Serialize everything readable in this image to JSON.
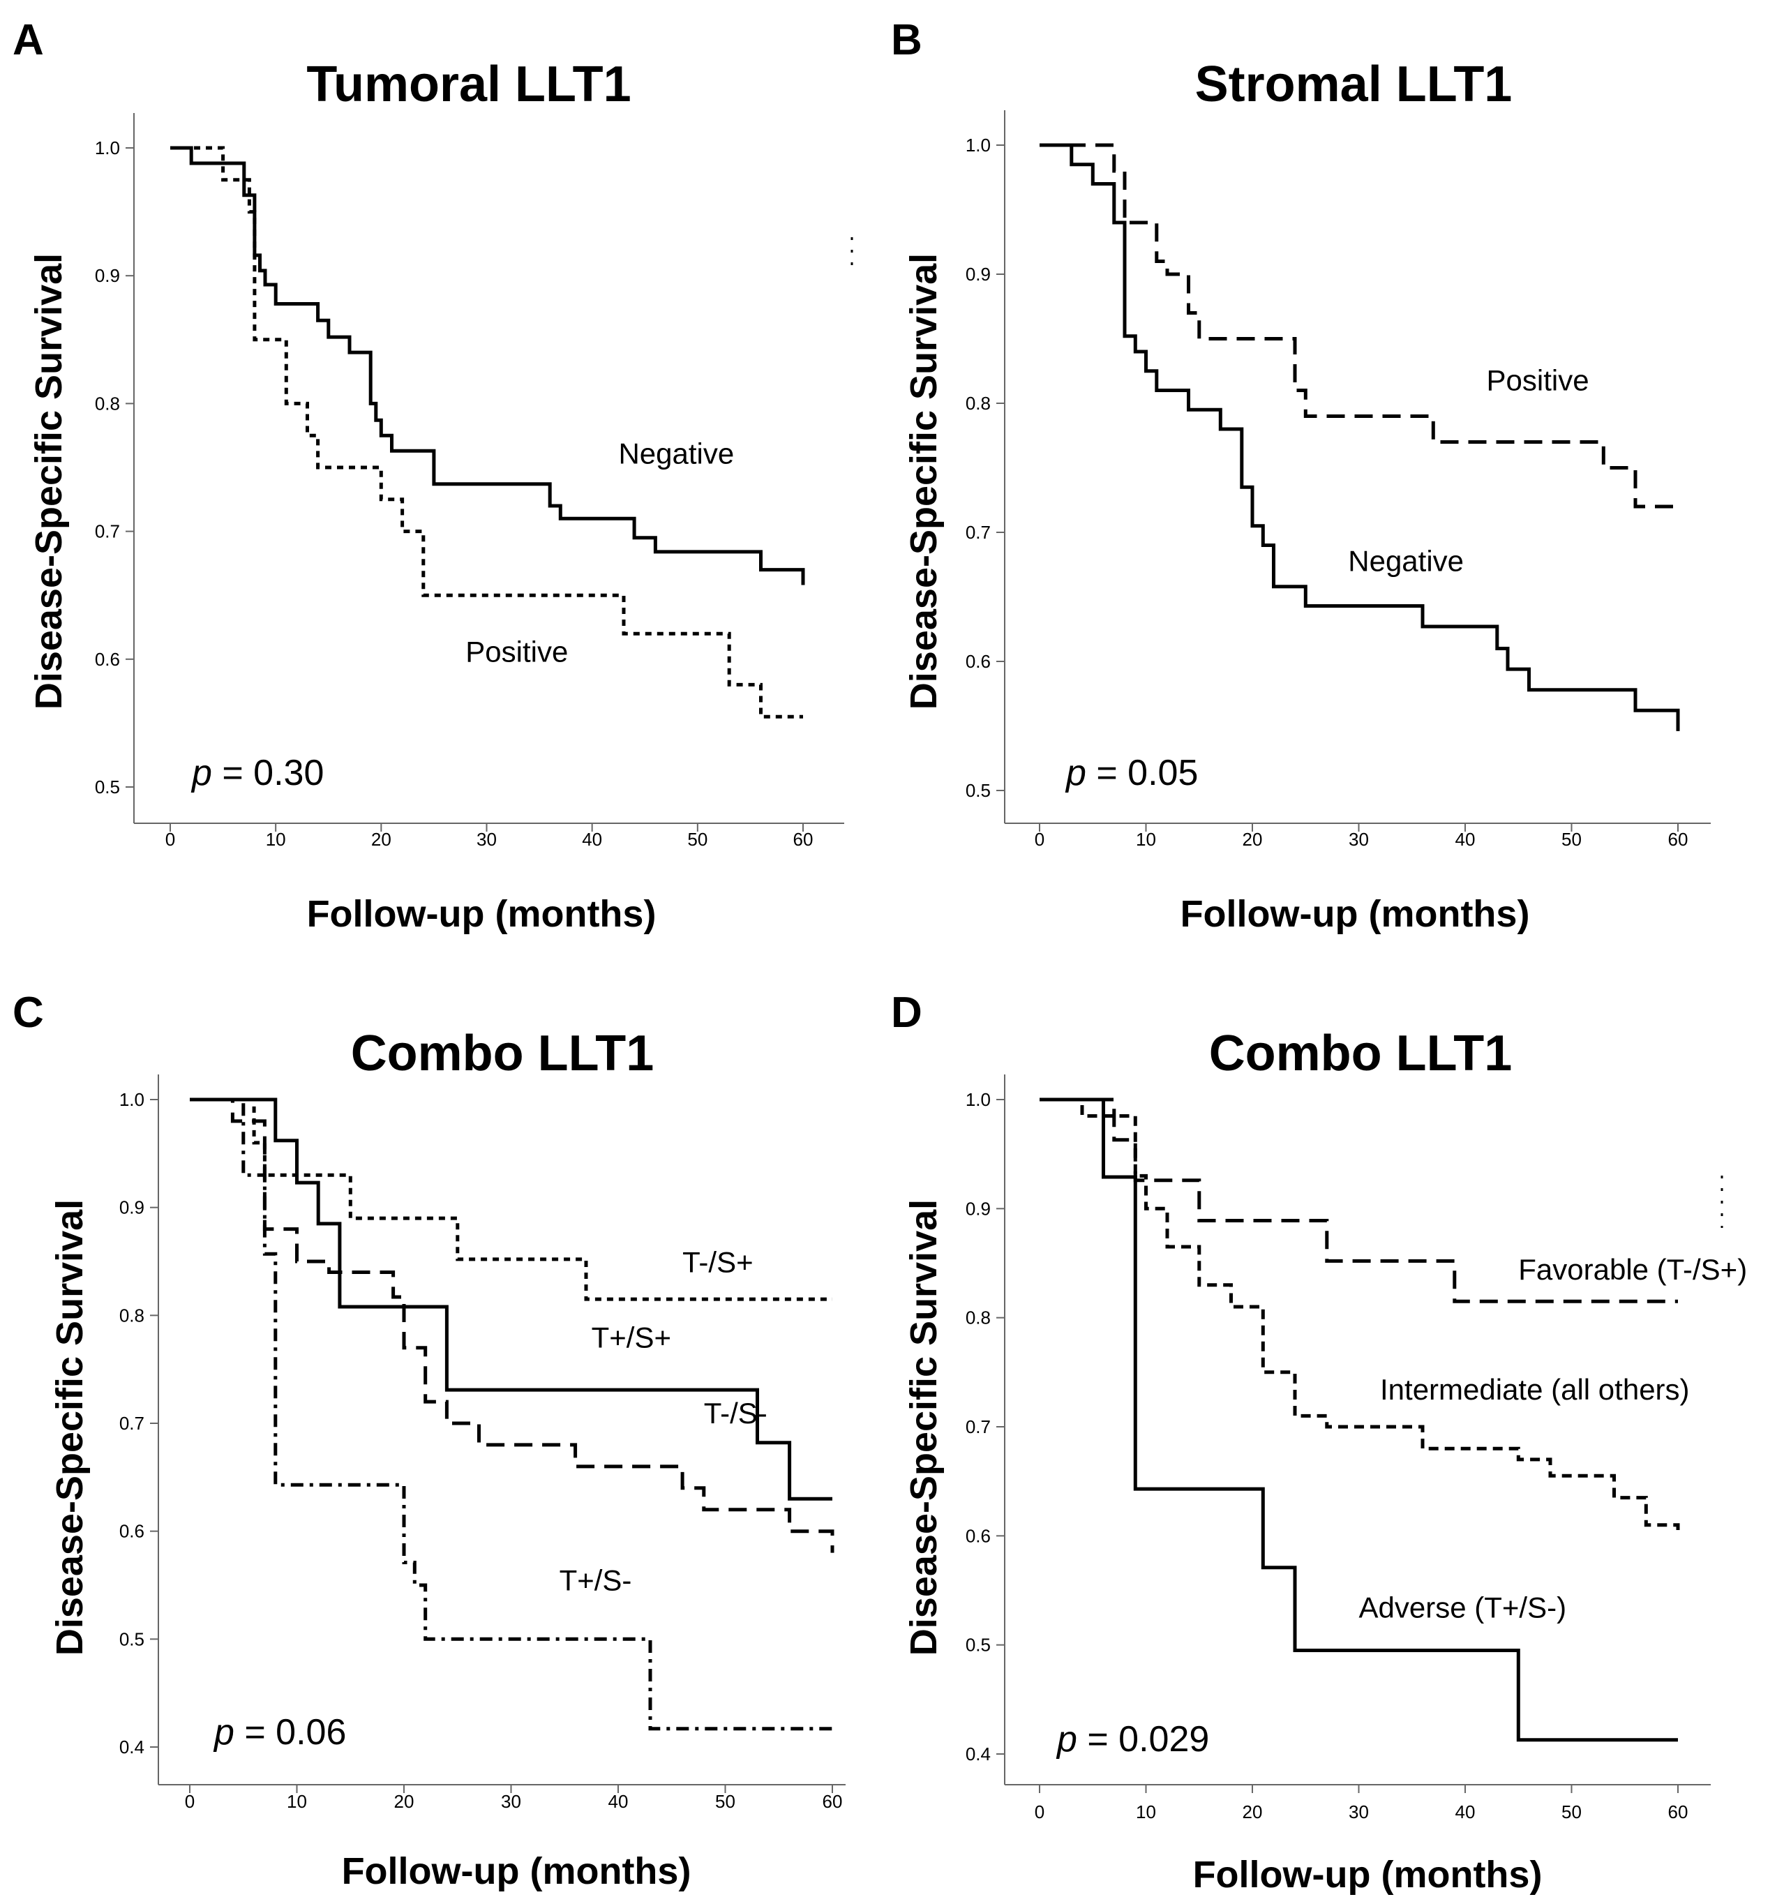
{
  "chart_data": [
    {
      "panel": "A",
      "type": "line",
      "title": "Tumoral LLT1",
      "xlabel": "Follow-up (months)",
      "ylabel": "Disease-Specific Survival",
      "xlim": [
        0,
        60
      ],
      "ylim": [
        0.5,
        1.0
      ],
      "xticks": [
        0,
        10,
        20,
        30,
        40,
        50,
        60
      ],
      "yticks": [
        0.5,
        0.6,
        0.7,
        0.8,
        0.9,
        1.0
      ],
      "p_prefix": "p",
      "p_text": "= 0.30",
      "series": [
        {
          "name": "Negative",
          "style": "solid",
          "label_at": [
            42.5,
            0.753
          ],
          "x": [
            0,
            2,
            4,
            7,
            8,
            8.5,
            9,
            10,
            11,
            14,
            15,
            17,
            19,
            19.5,
            20,
            21,
            22,
            25,
            36,
            37,
            44,
            46,
            56,
            60
          ],
          "y": [
            1.0,
            0.988,
            0.988,
            0.963,
            0.916,
            0.904,
            0.893,
            0.878,
            0.878,
            0.865,
            0.852,
            0.84,
            0.8,
            0.787,
            0.775,
            0.763,
            0.763,
            0.737,
            0.72,
            0.71,
            0.695,
            0.684,
            0.67,
            0.658
          ]
        },
        {
          "name": "Positive",
          "style": "dotted",
          "label_at": [
            28,
            0.598
          ],
          "x": [
            0,
            5,
            7.5,
            8,
            10,
            11,
            13,
            14,
            20,
            21,
            22,
            24,
            43,
            53,
            56,
            60
          ],
          "y": [
            1.0,
            0.975,
            0.95,
            0.85,
            0.85,
            0.8,
            0.775,
            0.75,
            0.725,
            0.725,
            0.7,
            0.65,
            0.62,
            0.58,
            0.555,
            0.555
          ]
        }
      ]
    },
    {
      "panel": "B",
      "type": "line",
      "title": "Stromal LLT1",
      "xlabel": "Follow-up (months)",
      "ylabel": "Disease-Specific Survival",
      "xlim": [
        0,
        60
      ],
      "ylim": [
        0.5,
        1.0
      ],
      "xticks": [
        0,
        10,
        20,
        30,
        40,
        50,
        60
      ],
      "yticks": [
        0.5,
        0.6,
        0.7,
        0.8,
        0.9,
        1.0
      ],
      "p_prefix": "p",
      "p_text": "= 0.05",
      "series": [
        {
          "name": "Positive",
          "style": "dashed",
          "label_at": [
            42,
            0.81
          ],
          "x": [
            0,
            7,
            8,
            9,
            11,
            12,
            14,
            15,
            24,
            25,
            37,
            53,
            56,
            60
          ],
          "y": [
            1.0,
            0.98,
            0.94,
            0.94,
            0.91,
            0.9,
            0.87,
            0.85,
            0.81,
            0.79,
            0.77,
            0.75,
            0.72,
            0.72
          ]
        },
        {
          "name": "Negative",
          "style": "solid",
          "label_at": [
            29,
            0.67
          ],
          "x": [
            0,
            3,
            5,
            7,
            8,
            9,
            10,
            11,
            14,
            17,
            19,
            20,
            21,
            22,
            25,
            36,
            43,
            44,
            46,
            56,
            60
          ],
          "y": [
            1.0,
            0.985,
            0.97,
            0.94,
            0.852,
            0.84,
            0.825,
            0.81,
            0.795,
            0.78,
            0.735,
            0.705,
            0.69,
            0.658,
            0.643,
            0.627,
            0.61,
            0.594,
            0.578,
            0.562,
            0.546
          ]
        }
      ]
    },
    {
      "panel": "C",
      "type": "line",
      "title": "Combo LLT1",
      "xlabel": "Follow-up (months)",
      "ylabel": "Disease-Specific Survival",
      "xlim": [
        0,
        60
      ],
      "ylim": [
        0.4,
        1.0
      ],
      "xticks": [
        0,
        10,
        20,
        30,
        40,
        50,
        60
      ],
      "yticks": [
        0.4,
        0.5,
        0.6,
        0.7,
        0.8,
        0.9,
        1.0
      ],
      "p_prefix": "p",
      "p_text": "= 0.06",
      "series": [
        {
          "name": "T-/S+",
          "style": "dotted",
          "label_at": [
            46,
            0.84
          ],
          "x": [
            0,
            6,
            7,
            8,
            15,
            25,
            37,
            60
          ],
          "y": [
            1.0,
            0.96,
            0.93,
            0.93,
            0.89,
            0.852,
            0.815,
            0.815
          ]
        },
        {
          "name": "T+/S+",
          "style": "solid",
          "label_at": [
            37.5,
            0.77
          ],
          "x": [
            0,
            8,
            10,
            12,
            14,
            24,
            53,
            56,
            60
          ],
          "y": [
            1.0,
            0.962,
            0.923,
            0.885,
            0.808,
            0.731,
            0.682,
            0.63,
            0.63
          ]
        },
        {
          "name": "T-/S-",
          "style": "dashed",
          "label_at": [
            48,
            0.7
          ],
          "x": [
            0,
            4,
            7,
            10,
            13,
            19,
            20,
            22,
            24,
            27,
            36,
            46,
            48,
            53,
            56,
            60
          ],
          "y": [
            1.0,
            0.98,
            0.88,
            0.85,
            0.84,
            0.817,
            0.77,
            0.72,
            0.7,
            0.68,
            0.66,
            0.64,
            0.62,
            0.62,
            0.6,
            0.58
          ]
        },
        {
          "name": "T+/S-",
          "style": "dashdot",
          "label_at": [
            34.5,
            0.545
          ],
          "x": [
            0,
            5,
            7,
            8,
            20,
            21,
            22,
            43,
            60
          ],
          "y": [
            1.0,
            0.93,
            0.857,
            0.643,
            0.571,
            0.55,
            0.5,
            0.417,
            0.417
          ]
        }
      ]
    },
    {
      "panel": "D",
      "type": "line",
      "title": "Combo LLT1",
      "xlabel": "Follow-up (months)",
      "ylabel": "Disease-Specific Survival",
      "xlim": [
        0,
        60
      ],
      "ylim": [
        0.4,
        1.0
      ],
      "xticks": [
        0,
        10,
        20,
        30,
        40,
        50,
        60
      ],
      "yticks": [
        0.4,
        0.5,
        0.6,
        0.7,
        0.8,
        0.9,
        1.0
      ],
      "p_prefix": "p",
      "p_text": "= 0.029",
      "series": [
        {
          "name": "Favorable (T-/S+)",
          "style": "dashed",
          "label_at": [
            45,
            0.835
          ],
          "x": [
            0,
            7,
            9,
            15,
            27,
            39,
            60
          ],
          "y": [
            1.0,
            0.963,
            0.926,
            0.889,
            0.852,
            0.815,
            0.815
          ]
        },
        {
          "name": "Intermediate (all others)",
          "style": "dashed_fine",
          "label_at": [
            32,
            0.725
          ],
          "x": [
            0,
            4,
            9,
            10,
            12,
            15,
            18,
            21,
            24,
            27,
            36,
            45,
            48,
            54,
            57,
            60
          ],
          "y": [
            1.0,
            0.985,
            0.93,
            0.9,
            0.865,
            0.83,
            0.81,
            0.75,
            0.71,
            0.7,
            0.68,
            0.67,
            0.655,
            0.635,
            0.61,
            0.6
          ]
        },
        {
          "name": "Adverse (T+/S-)",
          "style": "solid",
          "label_at": [
            30,
            0.525
          ],
          "x": [
            0,
            6,
            9,
            21,
            24,
            45,
            60
          ],
          "y": [
            1.0,
            0.929,
            0.643,
            0.571,
            0.495,
            0.413,
            0.413
          ]
        }
      ]
    }
  ]
}
